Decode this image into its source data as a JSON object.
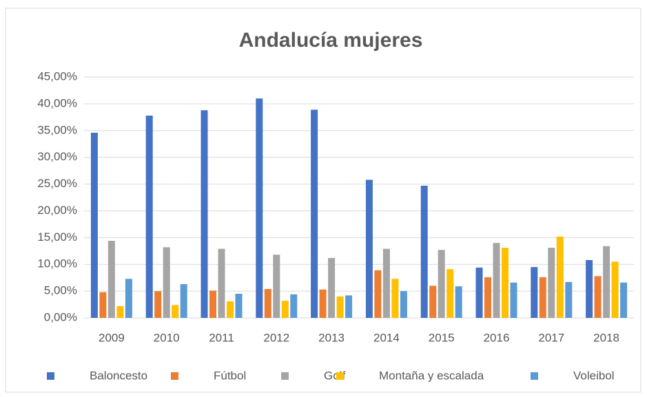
{
  "chart_data": {
    "type": "bar",
    "title": "Andalucía mujeres",
    "categories": [
      "2009",
      "2010",
      "2011",
      "2012",
      "2013",
      "2014",
      "2015",
      "2016",
      "2017",
      "2018"
    ],
    "series": [
      {
        "name": "Baloncesto",
        "color": "#4472c4",
        "values": [
          34.6,
          37.8,
          38.8,
          41.0,
          38.9,
          25.8,
          24.7,
          9.4,
          9.5,
          10.8
        ]
      },
      {
        "name": "Fútbol",
        "color": "#ed7d31",
        "values": [
          4.8,
          5.0,
          5.1,
          5.4,
          5.3,
          8.9,
          6.0,
          7.6,
          7.6,
          7.8
        ]
      },
      {
        "name": "Golf",
        "color": "#a5a5a5",
        "values": [
          14.4,
          13.2,
          12.9,
          11.8,
          11.2,
          12.9,
          12.7,
          14.0,
          13.1,
          13.4
        ]
      },
      {
        "name": "Montaña y escalada",
        "color": "#ffc000",
        "values": [
          2.2,
          2.4,
          3.1,
          3.2,
          4.0,
          7.3,
          9.1,
          13.1,
          15.2,
          10.5
        ]
      },
      {
        "name": "Voleibol",
        "color": "#5b9bd5",
        "values": [
          7.3,
          6.3,
          4.5,
          4.4,
          4.2,
          5.0,
          5.9,
          6.6,
          6.7,
          6.6
        ]
      }
    ],
    "ylim": [
      0,
      45
    ],
    "yticks": [
      {
        "value": 0,
        "label": "0,00%"
      },
      {
        "value": 5,
        "label": "5,00%"
      },
      {
        "value": 10,
        "label": "10,00%"
      },
      {
        "value": 15,
        "label": "15,00%"
      },
      {
        "value": 20,
        "label": "20,00%"
      },
      {
        "value": 25,
        "label": "25,00%"
      },
      {
        "value": 30,
        "label": "30,00%"
      },
      {
        "value": 35,
        "label": "35,00%"
      },
      {
        "value": 40,
        "label": "40,00%"
      },
      {
        "value": 45,
        "label": "45,00%"
      }
    ],
    "grid": true,
    "legend": "bottom"
  }
}
